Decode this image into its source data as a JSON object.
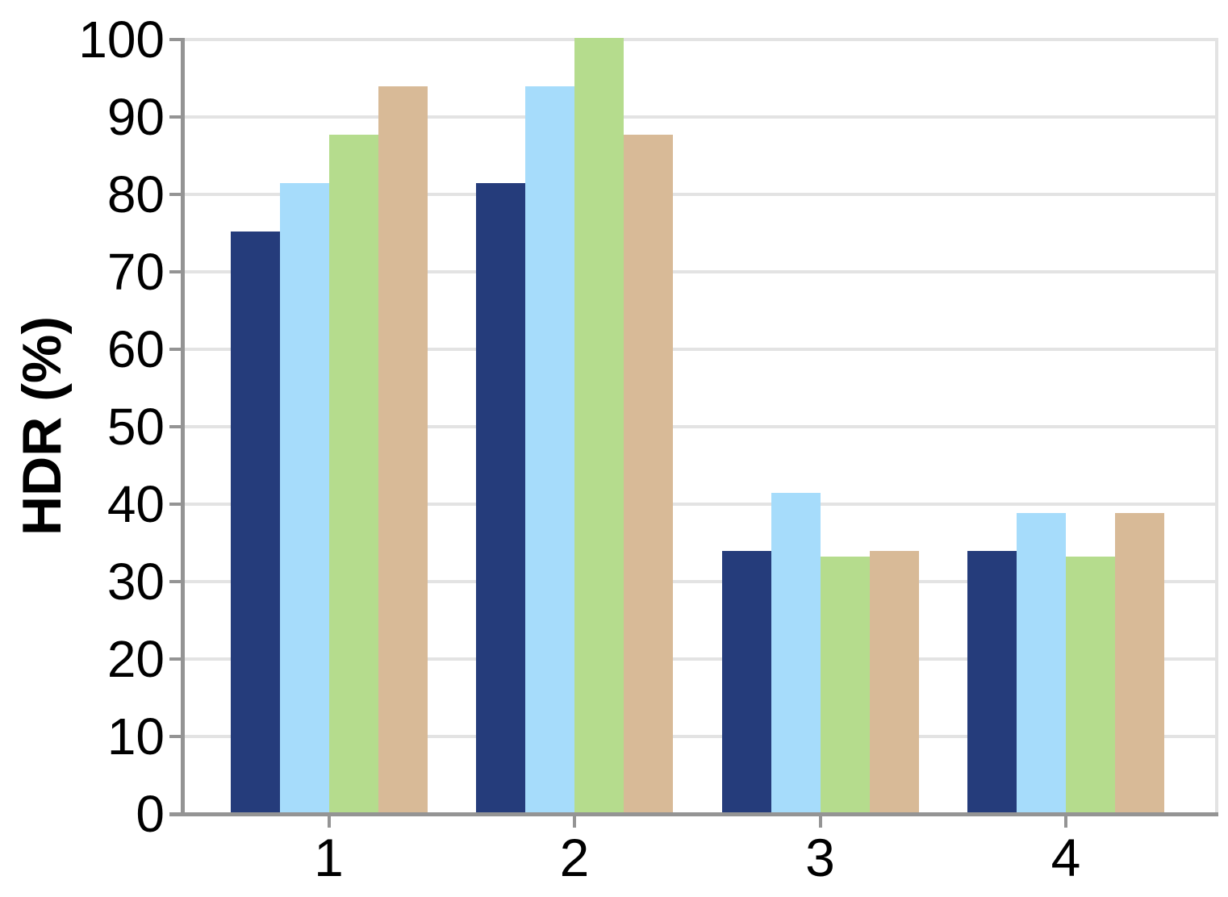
{
  "chart_data": {
    "type": "bar",
    "title": "",
    "ylabel": "HDR (%)",
    "xlabel": "",
    "categories": [
      "1",
      "2",
      "3",
      "4"
    ],
    "series": [
      {
        "name": "navy",
        "color": "#253C7B",
        "values": [
          75,
          81.25,
          33.7,
          33.7
        ]
      },
      {
        "name": "light-blue",
        "color": "#A6DCFB",
        "values": [
          81.25,
          93.75,
          41.2,
          38.6
        ]
      },
      {
        "name": "green",
        "color": "#B5DC8D",
        "values": [
          87.5,
          100,
          33,
          33
        ]
      },
      {
        "name": "tan",
        "color": "#D8BA97",
        "values": [
          93.75,
          87.5,
          33.7,
          38.6
        ]
      }
    ],
    "ylim": [
      0,
      100
    ],
    "yticks": [
      0,
      10,
      20,
      30,
      40,
      50,
      60,
      70,
      80,
      90,
      100
    ],
    "grid": true,
    "legend": "none"
  },
  "style": {
    "background": "#FFFFFF",
    "axis_color": "#949494",
    "grid_color": "#E3E3E3",
    "text_color": "#000000"
  }
}
